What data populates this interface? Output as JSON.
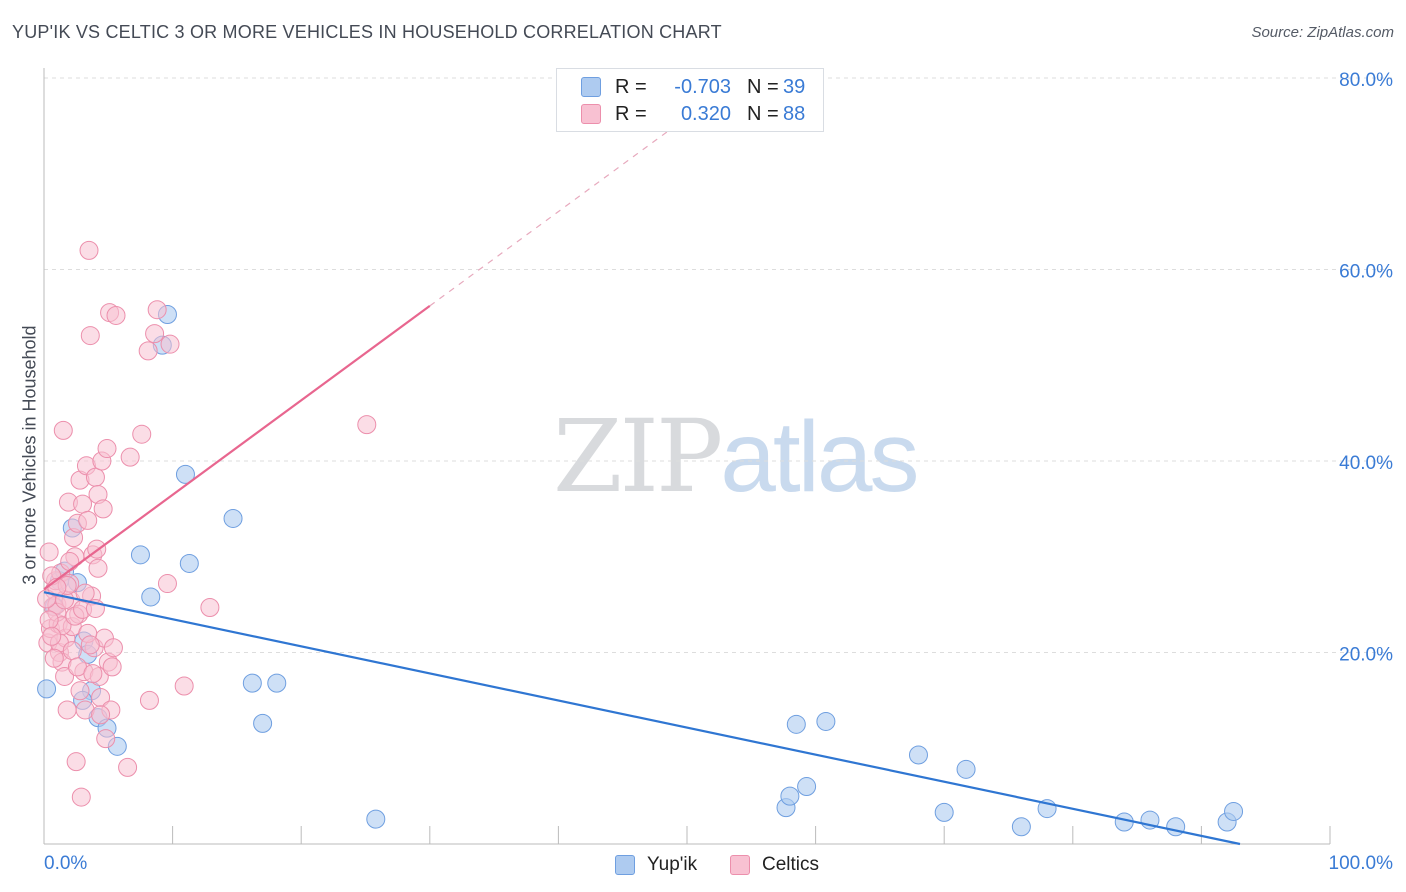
{
  "header": {
    "title": "YUP'IK VS CELTIC 3 OR MORE VEHICLES IN HOUSEHOLD CORRELATION CHART",
    "source": "Source: ZipAtlas.com"
  },
  "watermark": {
    "zip": "ZIP",
    "atlas": "atlas"
  },
  "colors": {
    "yupik_fill": "#aecbf0",
    "yupik_stroke": "#6f9fe0",
    "yupik_line": "#2f76d2",
    "celtic_fill": "#f8c1d2",
    "celtic_stroke": "#ec8fac",
    "celtic_line": "#e8668f",
    "grid": "#dddddd",
    "tick_label": "#3a7bd5"
  },
  "legend_top": {
    "rows": [
      {
        "r_label": "R =",
        "r_value": "-0.703",
        "n_label": "N =",
        "n_value": "39"
      },
      {
        "r_label": "R =",
        "r_value": "0.320",
        "n_label": "N =",
        "n_value": "88"
      }
    ]
  },
  "legend_bottom": {
    "items": [
      {
        "label": "Yup'ik"
      },
      {
        "label": "Celtics"
      }
    ]
  },
  "chart_data": {
    "type": "scatter",
    "title": "YUP'IK VS CELTIC 3 OR MORE VEHICLES IN HOUSEHOLD CORRELATION CHART",
    "xlabel": "",
    "ylabel": "3 or more Vehicles in Household",
    "xlim": [
      0,
      100
    ],
    "ylim": [
      0,
      80
    ],
    "x_tick_labels": [
      "0.0%",
      "100.0%"
    ],
    "y_ticks": [
      20,
      40,
      60,
      80
    ],
    "y_tick_labels": [
      "20.0%",
      "40.0%",
      "60.0%",
      "80.0%"
    ],
    "grid": true,
    "legend_position": "bottom-center",
    "series": [
      {
        "name": "Yup'ik",
        "r": -0.703,
        "n": 39,
        "trend": {
          "x0": 0,
          "y0": 26.3,
          "x1": 93,
          "y1": 0
        },
        "points": [
          [
            0.2,
            16.2
          ],
          [
            0.8,
            24.8
          ],
          [
            1.2,
            27.5
          ],
          [
            1.6,
            28.5
          ],
          [
            2.2,
            33
          ],
          [
            2.6,
            27.3
          ],
          [
            3.1,
            21.2
          ],
          [
            3.4,
            19.8
          ],
          [
            3.7,
            16.0
          ],
          [
            4.2,
            13.2
          ],
          [
            4.9,
            12.1
          ],
          [
            5.7,
            10.2
          ],
          [
            7.5,
            30.2
          ],
          [
            8.3,
            25.8
          ],
          [
            9.2,
            52.1
          ],
          [
            9.6,
            55.3
          ],
          [
            11.0,
            38.6
          ],
          [
            11.3,
            29.3
          ],
          [
            14.7,
            34.0
          ],
          [
            16.2,
            16.8
          ],
          [
            17.0,
            12.6
          ],
          [
            18.1,
            16.8
          ],
          [
            25.8,
            2.6
          ],
          [
            57.7,
            3.8
          ],
          [
            58.0,
            5.0
          ],
          [
            58.5,
            12.5
          ],
          [
            59.3,
            6.0
          ],
          [
            60.8,
            12.8
          ],
          [
            68.0,
            9.3
          ],
          [
            70.0,
            3.3
          ],
          [
            71.7,
            7.8
          ],
          [
            76.0,
            1.8
          ],
          [
            78.0,
            3.7
          ],
          [
            84.0,
            2.3
          ],
          [
            86.0,
            2.5
          ],
          [
            88.0,
            1.8
          ],
          [
            92.0,
            2.3
          ],
          [
            92.5,
            3.4
          ],
          [
            3.0,
            15.0
          ]
        ]
      },
      {
        "name": "Celtics",
        "r": 0.32,
        "n": 88,
        "trend": {
          "x0": 0,
          "y0": 26.6,
          "x1": 30,
          "y1": 56.2,
          "dash_to_x": 50,
          "dash_to_y": 75.9
        },
        "points": [
          [
            0.3,
            21.0
          ],
          [
            0.5,
            22.5
          ],
          [
            0.7,
            24.8
          ],
          [
            0.8,
            26.5
          ],
          [
            0.9,
            27.5
          ],
          [
            1.0,
            25.0
          ],
          [
            1.1,
            23.0
          ],
          [
            1.2,
            20.0
          ],
          [
            1.3,
            28.3
          ],
          [
            1.4,
            19.0
          ],
          [
            1.5,
            43.2
          ],
          [
            1.6,
            17.5
          ],
          [
            1.7,
            21.5
          ],
          [
            1.8,
            14.0
          ],
          [
            1.9,
            35.7
          ],
          [
            2.0,
            27.2
          ],
          [
            2.1,
            25.4
          ],
          [
            2.2,
            22.7
          ],
          [
            2.3,
            32.0
          ],
          [
            2.4,
            30.0
          ],
          [
            2.5,
            8.6
          ],
          [
            2.6,
            33.5
          ],
          [
            2.7,
            24.0
          ],
          [
            2.8,
            38.0
          ],
          [
            2.9,
            4.9
          ],
          [
            3.0,
            35.5
          ],
          [
            3.1,
            18.0
          ],
          [
            3.2,
            14.0
          ],
          [
            3.3,
            39.5
          ],
          [
            3.4,
            33.8
          ],
          [
            3.5,
            62.0
          ],
          [
            3.6,
            53.1
          ],
          [
            3.7,
            25.9
          ],
          [
            3.8,
            30.2
          ],
          [
            3.9,
            20.5
          ],
          [
            4.0,
            38.3
          ],
          [
            4.1,
            30.8
          ],
          [
            4.2,
            36.5
          ],
          [
            4.3,
            17.5
          ],
          [
            4.4,
            15.3
          ],
          [
            4.5,
            40.0
          ],
          [
            4.6,
            35.0
          ],
          [
            4.7,
            21.5
          ],
          [
            4.8,
            11.0
          ],
          [
            4.9,
            41.3
          ],
          [
            5.0,
            19.0
          ],
          [
            5.1,
            55.5
          ],
          [
            5.2,
            14.0
          ],
          [
            5.3,
            18.5
          ],
          [
            5.4,
            20.5
          ],
          [
            5.6,
            55.2
          ],
          [
            6.5,
            8.0
          ],
          [
            6.7,
            40.4
          ],
          [
            7.6,
            42.8
          ],
          [
            8.1,
            51.5
          ],
          [
            8.2,
            15.0
          ],
          [
            8.6,
            53.3
          ],
          [
            8.8,
            55.8
          ],
          [
            9.6,
            27.2
          ],
          [
            9.8,
            52.2
          ],
          [
            10.9,
            16.5
          ],
          [
            12.9,
            24.7
          ],
          [
            25.1,
            43.8
          ],
          [
            0.4,
            30.5
          ],
          [
            0.6,
            28.0
          ],
          [
            1.0,
            24.2
          ],
          [
            1.2,
            21.0
          ],
          [
            1.4,
            22.8
          ],
          [
            1.6,
            25.5
          ],
          [
            1.8,
            27.0
          ],
          [
            2.0,
            29.5
          ],
          [
            2.2,
            20.2
          ],
          [
            2.4,
            23.8
          ],
          [
            2.6,
            18.5
          ],
          [
            2.8,
            16.0
          ],
          [
            3.0,
            24.5
          ],
          [
            3.2,
            26.2
          ],
          [
            3.4,
            22.0
          ],
          [
            3.6,
            20.8
          ],
          [
            3.8,
            17.8
          ],
          [
            4.0,
            24.6
          ],
          [
            4.2,
            28.8
          ],
          [
            4.4,
            13.5
          ],
          [
            0.2,
            25.6
          ],
          [
            0.4,
            23.4
          ],
          [
            0.6,
            21.7
          ],
          [
            0.8,
            19.4
          ],
          [
            1.0,
            26.8
          ]
        ]
      }
    ]
  }
}
